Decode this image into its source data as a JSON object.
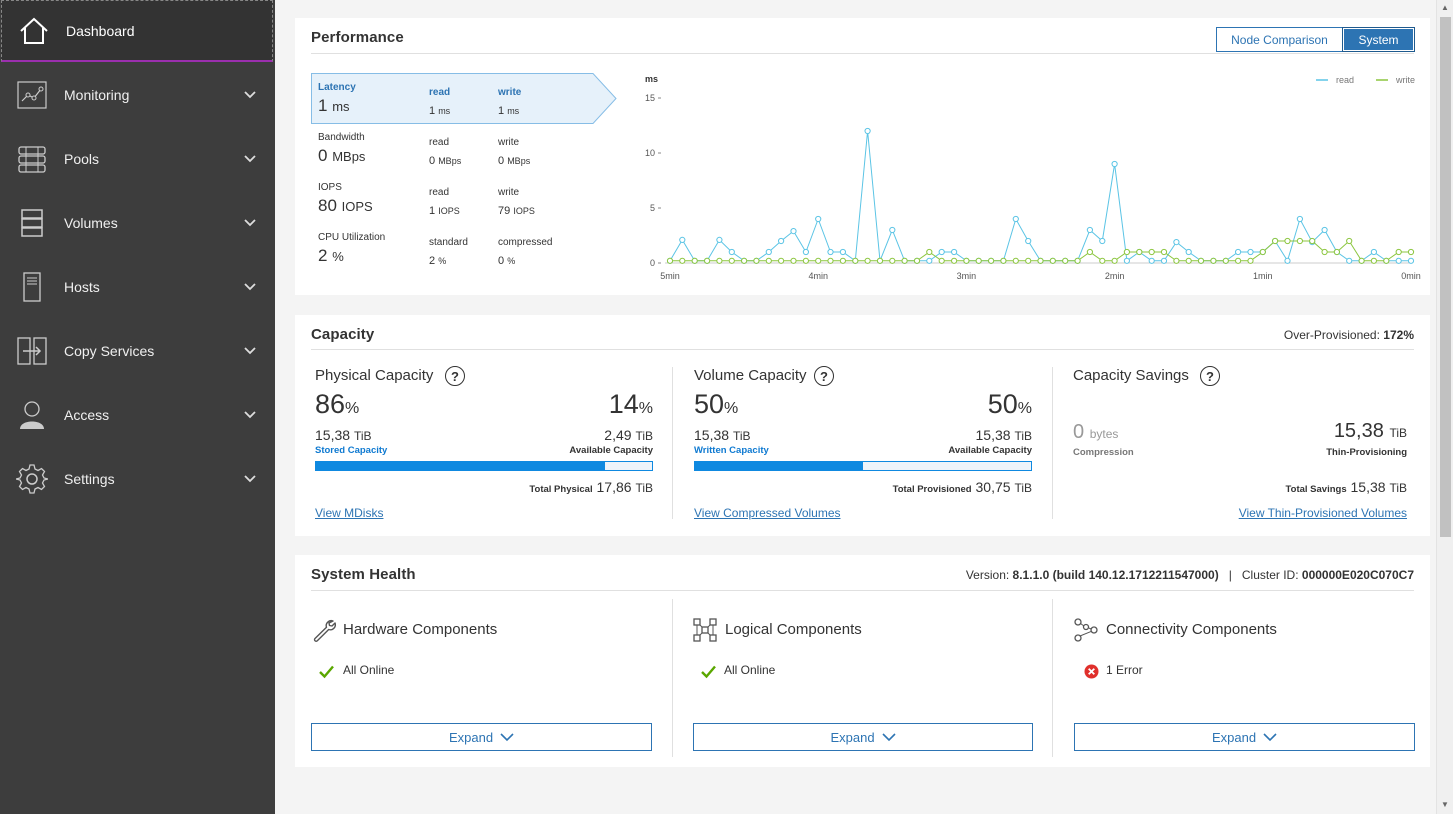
{
  "sidebar": {
    "items": [
      {
        "label": "Dashboard",
        "icon": "home-icon"
      },
      {
        "label": "Monitoring",
        "icon": "monitoring-icon"
      },
      {
        "label": "Pools",
        "icon": "pools-icon"
      },
      {
        "label": "Volumes",
        "icon": "volumes-icon"
      },
      {
        "label": "Hosts",
        "icon": "hosts-icon"
      },
      {
        "label": "Copy Services",
        "icon": "copy-services-icon"
      },
      {
        "label": "Access",
        "icon": "access-icon"
      },
      {
        "label": "Settings",
        "icon": "gear-icon"
      }
    ]
  },
  "performance": {
    "title": "Performance",
    "toggle": {
      "node_comparison": "Node Comparison",
      "system": "System",
      "selected": "System"
    },
    "metrics": [
      {
        "name": "Latency",
        "value": "1",
        "unit": "ms",
        "sub1_label": "read",
        "sub1_value": "1",
        "sub1_unit": "ms",
        "sub2_label": "write",
        "sub2_value": "1",
        "sub2_unit": "ms",
        "active": true
      },
      {
        "name": "Bandwidth",
        "value": "0",
        "unit": "MBps",
        "sub1_label": "read",
        "sub1_value": "0",
        "sub1_unit": "MBps",
        "sub2_label": "write",
        "sub2_value": "0",
        "sub2_unit": "MBps"
      },
      {
        "name": "IOPS",
        "value": "80",
        "unit": "IOPS",
        "sub1_label": "read",
        "sub1_value": "1",
        "sub1_unit": "IOPS",
        "sub2_label": "write",
        "sub2_value": "79",
        "sub2_unit": "IOPS"
      },
      {
        "name": "CPU Utilization",
        "value": "2",
        "unit": "%",
        "sub1_label": "standard",
        "sub1_value": "2",
        "sub1_unit": "%",
        "sub2_label": "compressed",
        "sub2_value": "0",
        "sub2_unit": "%"
      }
    ]
  },
  "chart_data": {
    "type": "line",
    "ylabel": "ms",
    "ylim": [
      0,
      15
    ],
    "yticks": [
      "0",
      "5",
      "10",
      "15"
    ],
    "xticks": [
      "5min",
      "4min",
      "3min",
      "2min",
      "1min",
      "0min"
    ],
    "xlim": [
      5,
      0
    ],
    "grid": false,
    "legend": "top-right",
    "x": [
      5.0,
      4.9167,
      4.8333,
      4.75,
      4.6667,
      4.5833,
      4.5,
      4.4167,
      4.3333,
      4.25,
      4.1667,
      4.0833,
      4.0,
      3.9167,
      3.8333,
      3.75,
      3.6667,
      3.5833,
      3.5,
      3.4167,
      3.3333,
      3.25,
      3.1667,
      3.0833,
      3.0,
      2.9167,
      2.8333,
      2.75,
      2.6667,
      2.5833,
      2.5,
      2.4167,
      2.3333,
      2.25,
      2.1667,
      2.0833,
      2.0,
      1.9167,
      1.8333,
      1.75,
      1.6667,
      1.5833,
      1.5,
      1.4167,
      1.3333,
      1.25,
      1.1667,
      1.0833,
      1.0,
      0.9167,
      0.8333,
      0.75,
      0.6667,
      0.5833,
      0.5,
      0.4167,
      0.3333,
      0.25,
      0.1667,
      0.0833,
      0.0
    ],
    "series": [
      {
        "name": "read",
        "color": "#5bc4e5",
        "values": [
          0.2,
          2.1,
          0.2,
          0.2,
          2.1,
          1.0,
          0.2,
          0.2,
          1.0,
          2.0,
          2.9,
          1.0,
          4.0,
          1.0,
          1.0,
          0.2,
          12.0,
          0.2,
          3.0,
          0.2,
          0.2,
          0.2,
          1.0,
          1.0,
          0.2,
          0.2,
          0.2,
          0.2,
          4.0,
          2.0,
          0.2,
          0.2,
          0.2,
          0.2,
          3.0,
          2.0,
          9.0,
          0.2,
          1.0,
          0.2,
          0.2,
          1.9,
          1.0,
          0.2,
          0.2,
          0.2,
          1.0,
          1.0,
          1.0,
          2.0,
          0.2,
          4.0,
          1.9,
          3.0,
          1.0,
          0.2,
          0.2,
          1.0,
          0.2,
          0.2,
          0.2
        ]
      },
      {
        "name": "write",
        "color": "#8cc63f",
        "values": [
          0.2,
          0.2,
          0.2,
          0.2,
          0.2,
          0.2,
          0.2,
          0.2,
          0.2,
          0.2,
          0.2,
          0.2,
          0.2,
          0.2,
          0.2,
          0.2,
          0.2,
          0.2,
          0.2,
          0.2,
          0.2,
          1.0,
          0.2,
          0.2,
          0.2,
          0.2,
          0.2,
          0.2,
          0.2,
          0.2,
          0.2,
          0.2,
          0.2,
          0.2,
          1.0,
          0.2,
          0.2,
          1.0,
          1.0,
          1.0,
          1.0,
          0.2,
          0.2,
          0.2,
          0.2,
          0.2,
          0.2,
          0.2,
          1.0,
          2.0,
          2.0,
          2.0,
          2.0,
          1.0,
          1.0,
          2.0,
          0.2,
          0.2,
          0.2,
          1.0,
          1.0
        ]
      }
    ]
  },
  "capacity": {
    "title": "Capacity",
    "over_provisioned_label": "Over-Provisioned:",
    "over_provisioned_value": "172%",
    "physical": {
      "title": "Physical Capacity",
      "used_pct": "86",
      "avail_pct": "14",
      "pct_unit": "%",
      "stored_value": "15,38",
      "stored_unit": "TiB",
      "stored_label": "Stored Capacity",
      "available_value": "2,49",
      "available_unit": "TiB",
      "available_label": "Available Capacity",
      "fill_fraction": 0.86,
      "total_label": "Total Physical",
      "total_value": "17,86",
      "total_unit": "TiB",
      "link": "View MDisks"
    },
    "volume": {
      "title": "Volume Capacity",
      "used_pct": "50",
      "avail_pct": "50",
      "pct_unit": "%",
      "written_value": "15,38",
      "written_unit": "TiB",
      "written_label": "Written Capacity",
      "available_value": "15,38",
      "available_unit": "TiB",
      "available_label": "Available Capacity",
      "fill_fraction": 0.5,
      "total_label": "Total Provisioned",
      "total_value": "30,75",
      "total_unit": "TiB",
      "link": "View Compressed Volumes"
    },
    "savings": {
      "title": "Capacity Savings",
      "compression_value": "0",
      "compression_unit": "bytes",
      "compression_label": "Compression",
      "thin_value": "15,38",
      "thin_unit": "TiB",
      "thin_label": "Thin-Provisioning",
      "total_label": "Total Savings",
      "total_value": "15,38",
      "total_unit": "TiB",
      "link": "View Thin-Provisioned Volumes"
    }
  },
  "health": {
    "title": "System Health",
    "version_label": "Version:",
    "version_value": "8.1.1.0 (build 140.12.1712211547000)",
    "separator": "|",
    "cluster_label": "Cluster ID:",
    "cluster_value": "000000E020C070C7",
    "hardware": {
      "title": "Hardware Components",
      "status": "All Online",
      "expand": "Expand"
    },
    "logical": {
      "title": "Logical Components",
      "status": "All Online",
      "expand": "Expand"
    },
    "connectivity": {
      "title": "Connectivity Components",
      "status": "1 Error",
      "expand": "Expand"
    }
  },
  "colors": {
    "accent": "#2d74b3",
    "bar": "#0f89e0",
    "ok": "#5aa700",
    "error": "#e0302c",
    "sidebar": "#3d3d3d"
  }
}
